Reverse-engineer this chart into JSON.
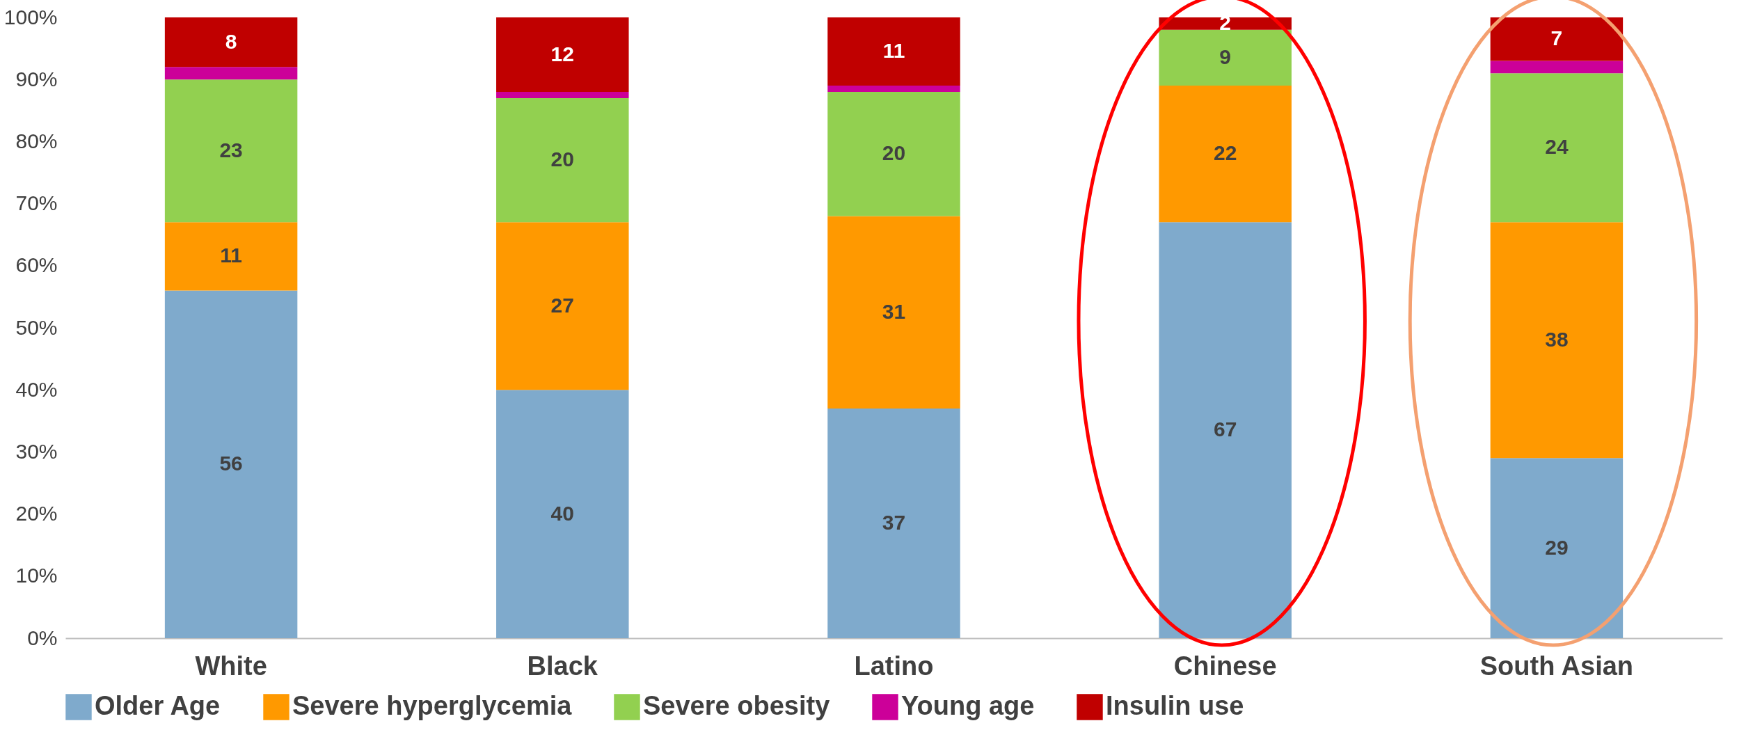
{
  "chart_data": {
    "type": "bar",
    "stacked": true,
    "categories": [
      "White",
      "Black",
      "Latino",
      "Chinese",
      "South Asian"
    ],
    "series": [
      {
        "name": "Older Age",
        "color": "#7faacc",
        "values": [
          56,
          40,
          37,
          67,
          29
        ],
        "value_labels": [
          "56",
          "40",
          "37",
          "67",
          "29"
        ]
      },
      {
        "name": "Severe hyperglycemia",
        "color": "#ff9900",
        "values": [
          11,
          27,
          31,
          22,
          38
        ],
        "value_labels": [
          "11",
          "27",
          "31",
          "22",
          "38"
        ]
      },
      {
        "name": "Severe obesity",
        "color": "#92d050",
        "values": [
          23,
          20,
          20,
          9,
          24
        ],
        "value_labels": [
          "23",
          "20",
          "20",
          "9",
          "24"
        ]
      },
      {
        "name": "Young age",
        "color": "#cc0099",
        "values": [
          2,
          1,
          1,
          0,
          2
        ],
        "value_labels": [
          null,
          null,
          null,
          null,
          null
        ]
      },
      {
        "name": "Insulin use",
        "color": "#c00000",
        "values": [
          8,
          12,
          11,
          2,
          7
        ],
        "value_labels": [
          "8",
          "12",
          "11",
          "2",
          "7"
        ]
      }
    ],
    "ylim": [
      0,
      100
    ],
    "yticks": [
      {
        "value": 0,
        "label": "0%"
      },
      {
        "value": 10,
        "label": "10%"
      },
      {
        "value": 20,
        "label": "20%"
      },
      {
        "value": 30,
        "label": "30%"
      },
      {
        "value": 40,
        "label": "40%"
      },
      {
        "value": 50,
        "label": "50%"
      },
      {
        "value": 60,
        "label": "60%"
      },
      {
        "value": 70,
        "label": "70%"
      },
      {
        "value": 80,
        "label": "80%"
      },
      {
        "value": 90,
        "label": "90%"
      },
      {
        "value": 100,
        "label": "100%"
      }
    ],
    "grid": false,
    "legend": "bottom"
  }
}
